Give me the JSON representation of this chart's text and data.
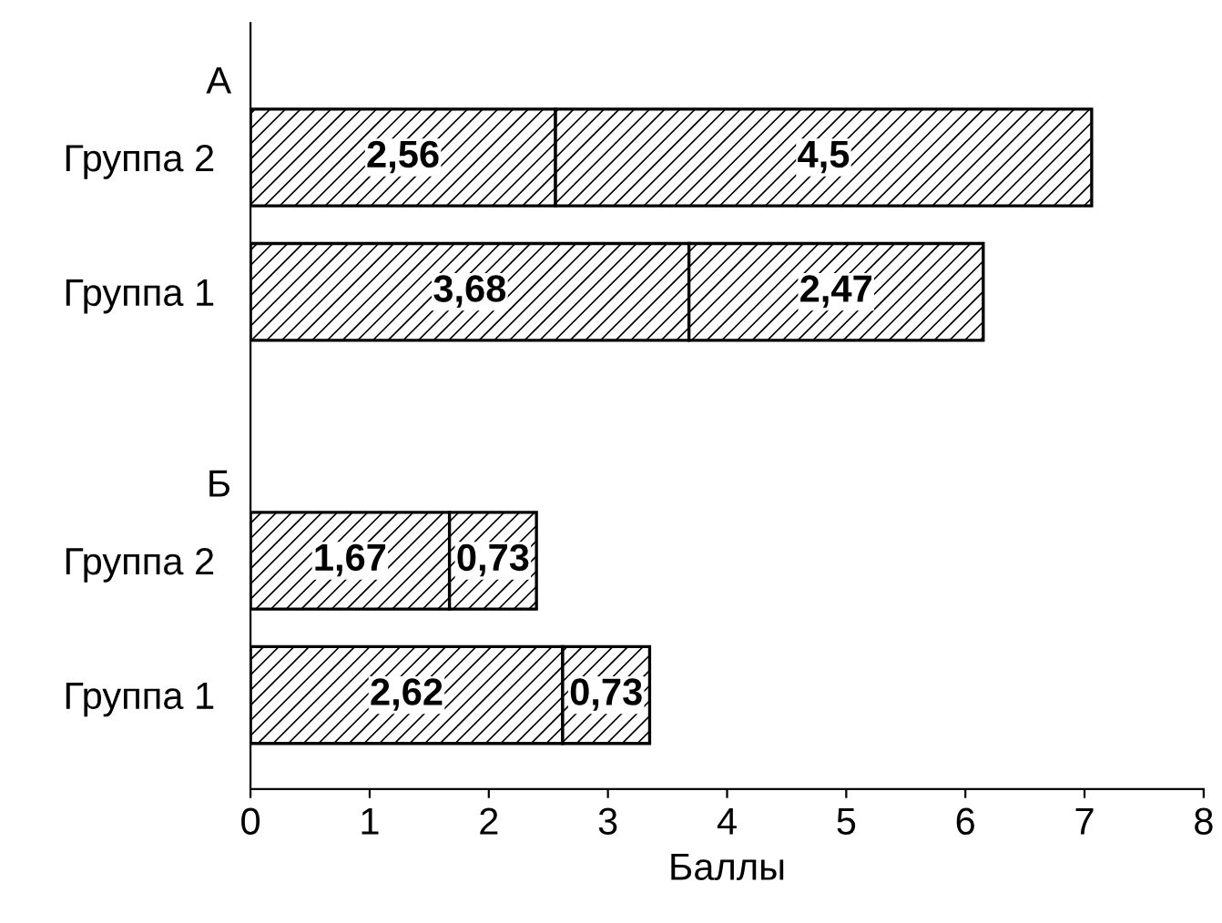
{
  "chart_data": {
    "type": "bar",
    "orientation": "horizontal",
    "stacked": true,
    "xlabel": "Баллы",
    "categories": [
      "Группа 2",
      "Группа 1",
      null,
      "Группа 2",
      "Группа 1"
    ],
    "series": [
      {
        "color": "#000000",
        "values": [
          2.56,
          3.68,
          null,
          1.67,
          2.62
        ],
        "value_labels": [
          "2,56",
          "3,68",
          null,
          "1,67",
          "2,62"
        ]
      },
      {
        "color": "#000000",
        "values": [
          4.5,
          2.47,
          null,
          0.73,
          0.73
        ],
        "value_labels": [
          "4,5",
          "2,47",
          null,
          "0,73",
          "0,73"
        ]
      }
    ],
    "xlim": [
      0,
      8
    ],
    "xticks": [
      0,
      1,
      2,
      3,
      4,
      5,
      6,
      7,
      8
    ],
    "annotations": [
      "А",
      "Б"
    ],
    "grid": false,
    "legend": false
  }
}
